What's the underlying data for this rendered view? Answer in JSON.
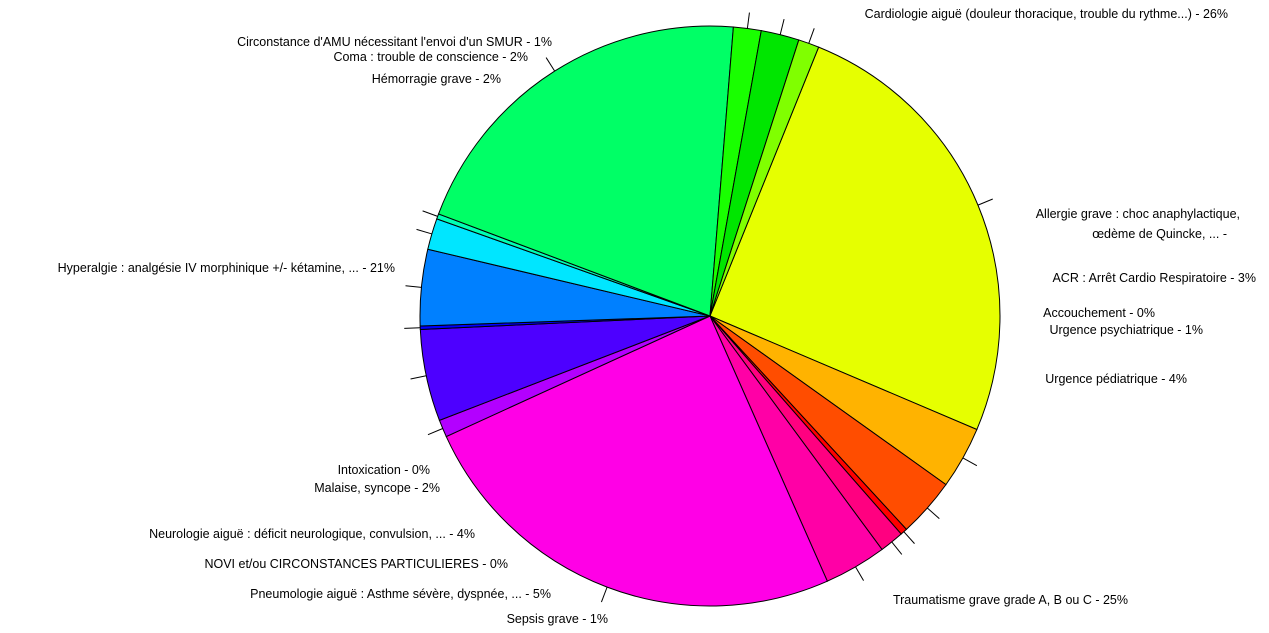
{
  "chart_data": {
    "type": "pie",
    "title": "",
    "slices": [
      {
        "label": "Cardiologie aiguë (douleur thoracique, trouble du rythme...) - 26%",
        "value": 26.2,
        "color": "#e6ff00"
      },
      {
        "label": "Allergie grave : choc anaphylactique, œdème de Quincke, ... -",
        "value": 3.6,
        "color": "#ffb300"
      },
      {
        "label": "ACR : Arrêt Cardio Respiratoire - 3%",
        "value": 3.4,
        "color": "#ff4d00"
      },
      {
        "label": "Accouchement - 0%",
        "value": 0.4,
        "color": "#ff0000"
      },
      {
        "label": "Urgence psychiatrique - 1%",
        "value": 1.4,
        "color": "#ff0080"
      },
      {
        "label": "Urgence pédiatrique - 4%",
        "value": 3.6,
        "color": "#ff00a6"
      },
      {
        "label": "Traumatisme grave grade A, B ou C - 25%",
        "value": 25.7,
        "color": "#ff00e6"
      },
      {
        "label": "Sepsis grave - 1%",
        "value": 1.0,
        "color": "#b300ff"
      },
      {
        "label": "Pneumologie aiguë : Asthme sévère, dyspnée, ... - 5%",
        "value": 5.3,
        "color": "#4d00ff"
      },
      {
        "label": "NOVI et/ou CIRCONSTANCES PARTICULIERES - 0%",
        "value": 0.2,
        "color": "#0000ff"
      },
      {
        "label": "Neurologie aiguë : déficit neurologique, convulsion, ... - 4%",
        "value": 4.4,
        "color": "#0080ff"
      },
      {
        "label": "Malaise, syncope - 2%",
        "value": 1.8,
        "color": "#00e6ff"
      },
      {
        "label": "Intoxication - 0%",
        "value": 0.3,
        "color": "#00ffb3"
      },
      {
        "label": "Hyperalgie : analgésie IV morphinique +/- kétamine, ... - 21%",
        "value": 21.3,
        "color": "#00ff66"
      },
      {
        "label": "Hémorragie grave - 2%",
        "value": 1.6,
        "color": "#19ff00"
      },
      {
        "label": "Coma : trouble de conscience - 2%",
        "value": 2.2,
        "color": "#00e600"
      },
      {
        "label": "Circonstance d'AMU nécessitant l'envoi d'un SMUR - 1%",
        "value": 1.2,
        "color": "#80ff00"
      }
    ]
  }
}
